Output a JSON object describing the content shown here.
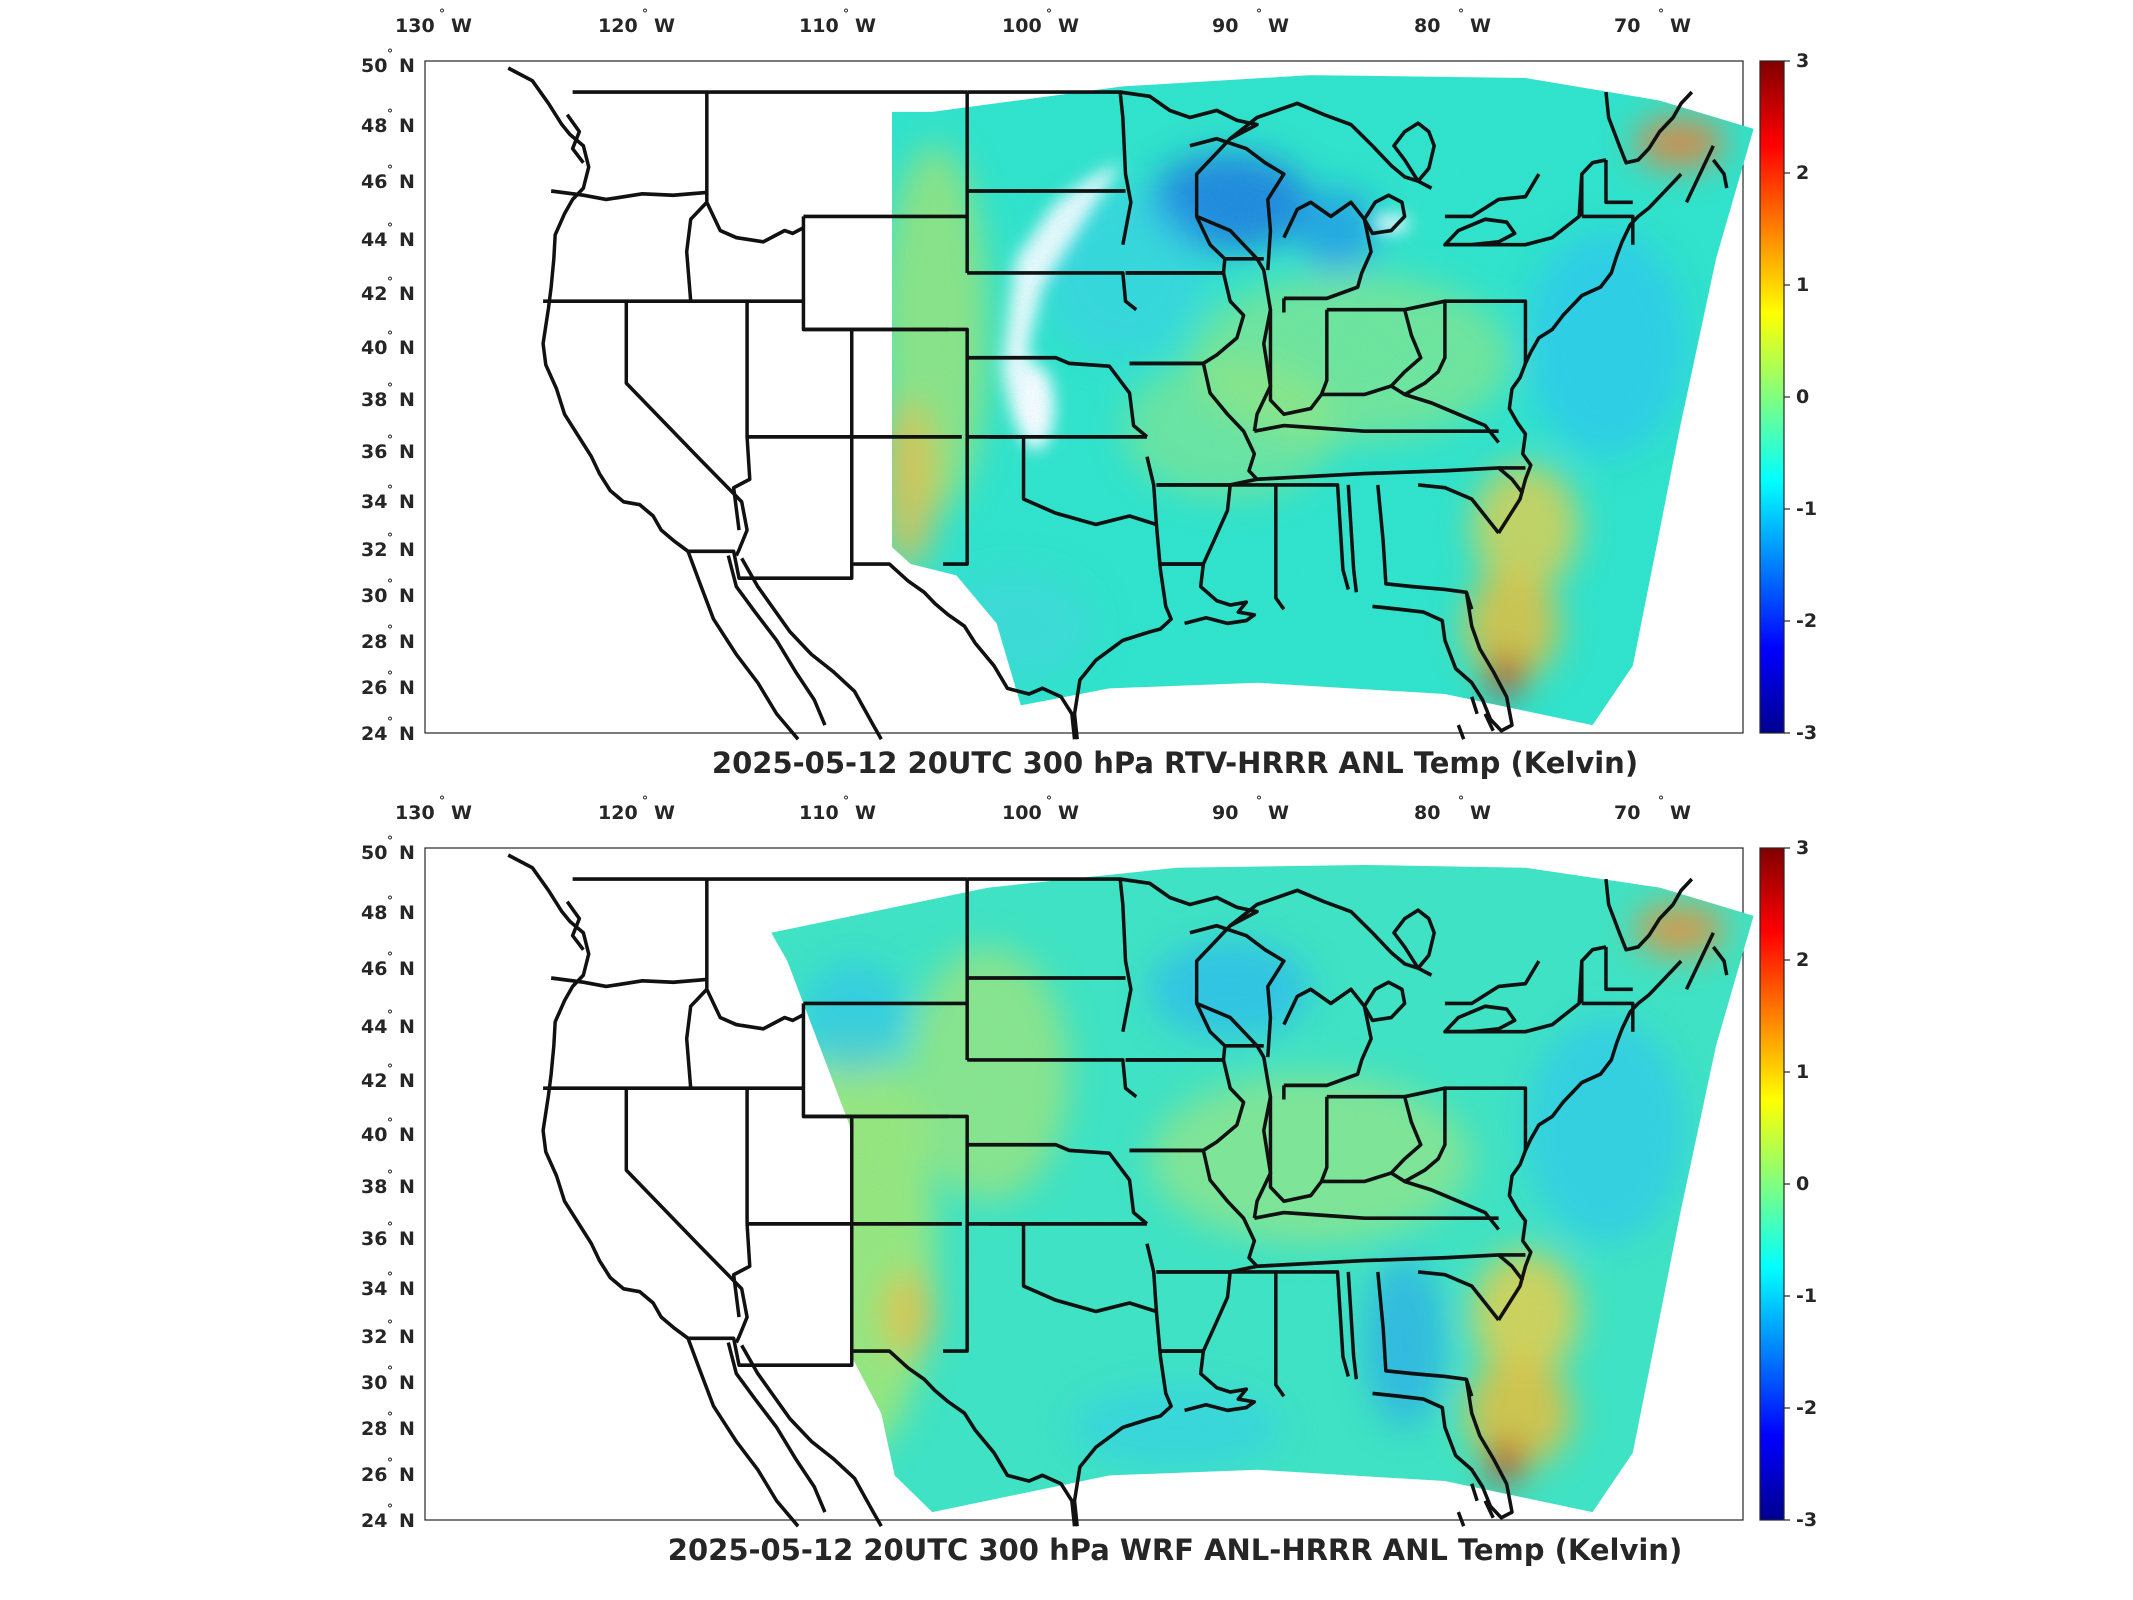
{
  "panels": [
    {
      "id": "top",
      "title": "2025-05-12 20UTC 300 hPa RTV-HRRR ANL Temp (Kelvin)"
    },
    {
      "id": "bottom",
      "title": "2025-05-12 20UTC 300 hPa WRF ANL-HRRR ANL Temp (Kelvin)"
    }
  ],
  "lon_ticks": [
    "130",
    "120",
    "110",
    "100",
    "90",
    "80",
    "70"
  ],
  "lon_suffix": "W",
  "lat_ticks": [
    "50",
    "48",
    "46",
    "44",
    "42",
    "40",
    "38",
    "36",
    "34",
    "32",
    "30",
    "28",
    "26",
    "24"
  ],
  "lat_suffix": "N",
  "degree_symbol": "°",
  "colorbar": {
    "min": -3,
    "max": 3,
    "ticks": [
      "3",
      "2",
      "1",
      "0",
      "-1",
      "-2",
      "-3"
    ],
    "colormap": "jet",
    "colors": [
      "#00008f",
      "#0000ff",
      "#0080ff",
      "#00ffff",
      "#80ff80",
      "#ffff00",
      "#ff8000",
      "#ff0000",
      "#800000"
    ]
  },
  "field_colors": {
    "base": "#33e0cc",
    "cool": "#19c4f0",
    "blue": "#2a8cf0",
    "warm": "#c8e860",
    "yellow": "#f0e040",
    "orange": "#f09020",
    "red": "#c02010",
    "missing": "#ffffff"
  }
}
